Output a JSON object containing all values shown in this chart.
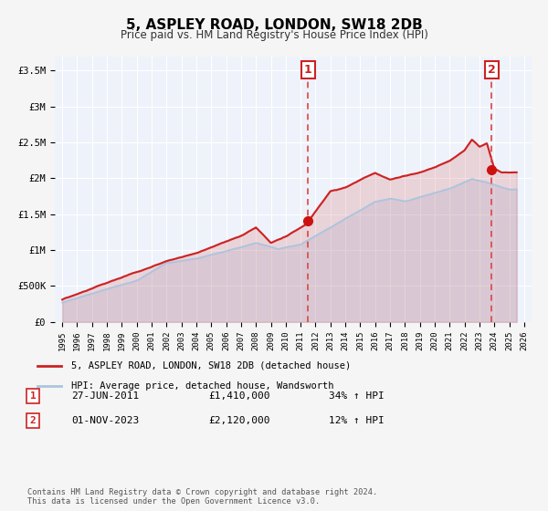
{
  "title": "5, ASPLEY ROAD, LONDON, SW18 2DB",
  "subtitle": "Price paid vs. HM Land Registry's House Price Index (HPI)",
  "xlim": [
    1994.5,
    2026.5
  ],
  "ylim": [
    0,
    3700000
  ],
  "yticks": [
    0,
    500000,
    1000000,
    1500000,
    2000000,
    2500000,
    3000000,
    3500000
  ],
  "ytick_labels": [
    "£0",
    "£500K",
    "£1M",
    "£1.5M",
    "£2M",
    "£2.5M",
    "£3M",
    "£3.5M"
  ],
  "bg_color": "#e8eef7",
  "plot_bg_color": "#eef2fa",
  "grid_color": "#ffffff",
  "hpi_color": "#aac4e0",
  "price_color": "#cc2222",
  "marker_color": "#cc1111",
  "vline_color": "#dd4444",
  "sale1_year": 2011.49,
  "sale1_price": 1410000,
  "sale1_label": "27-JUN-2011",
  "sale1_pct": "34% ↑ HPI",
  "sale2_year": 2023.83,
  "sale2_price": 2120000,
  "sale2_label": "01-NOV-2023",
  "sale2_pct": "12% ↑ HPI",
  "legend_label_price": "5, ASPLEY ROAD, LONDON, SW18 2DB (detached house)",
  "legend_label_hpi": "HPI: Average price, detached house, Wandsworth",
  "footnote1": "Contains HM Land Registry data © Crown copyright and database right 2024.",
  "footnote2": "This data is licensed under the Open Government Licence v3.0."
}
